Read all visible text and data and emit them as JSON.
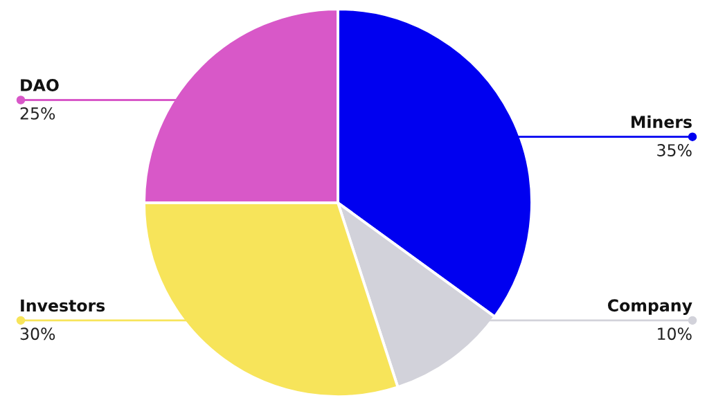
{
  "chart_data": {
    "type": "pie",
    "categories": [
      "Miners",
      "Company",
      "Investors",
      "DAO"
    ],
    "values": [
      35,
      10,
      30,
      25
    ],
    "colors": [
      "#0000f0",
      "#d2d2da",
      "#f7e45a",
      "#d858c8"
    ],
    "value_labels": [
      "35%",
      "10%",
      "30%",
      "25%"
    ]
  }
}
